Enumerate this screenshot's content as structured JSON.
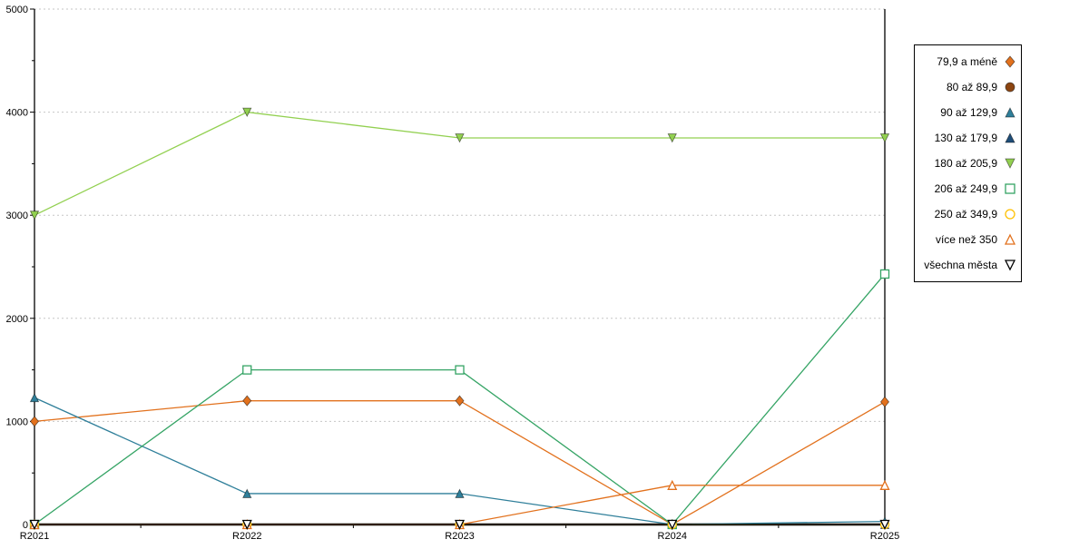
{
  "chart_data": {
    "type": "line",
    "title": "",
    "xlabel": "",
    "ylabel": "",
    "categories": [
      "R2021",
      "R2022",
      "R2023",
      "R2024",
      "R2025"
    ],
    "ylim": [
      0,
      5000
    ],
    "y_ticks": [
      0,
      1000,
      2000,
      3000,
      4000,
      5000
    ],
    "grid": "dotted-horizontal",
    "legend_position": "right",
    "axis_color": "#000000",
    "grid_color": "#c6c6c6",
    "series": [
      {
        "name": "79,9 a méně",
        "color": "#e2711d",
        "marker": "diamond",
        "fill": "filled",
        "values": [
          1000,
          1200,
          1200,
          0,
          1190
        ]
      },
      {
        "name": "80 až 89,9",
        "color": "#8c4511",
        "marker": "circle",
        "fill": "filled",
        "values": [
          0,
          0,
          0,
          0,
          0
        ]
      },
      {
        "name": "90 až 129,9",
        "color": "#2f7f9a",
        "marker": "triangle-up",
        "fill": "filled",
        "values": [
          1230,
          300,
          300,
          0,
          30
        ]
      },
      {
        "name": "130 až 179,9",
        "color": "#1f4e79",
        "marker": "triangle-up",
        "fill": "filled",
        "values": [
          0,
          0,
          0,
          0,
          0
        ]
      },
      {
        "name": "180 až 205,9",
        "color": "#92d050",
        "marker": "triangle-down",
        "fill": "filled",
        "values": [
          3000,
          4000,
          3750,
          3750,
          3750
        ]
      },
      {
        "name": "206 až 249,9",
        "color": "#35a465",
        "marker": "square",
        "fill": "hollow",
        "values": [
          0,
          1500,
          1500,
          0,
          2430
        ]
      },
      {
        "name": "250 až 349,9",
        "color": "#ffc000",
        "marker": "circle",
        "fill": "hollow",
        "values": [
          0,
          0,
          0,
          0,
          0
        ]
      },
      {
        "name": "více než 350",
        "color": "#e2711d",
        "marker": "triangle-up",
        "fill": "hollow",
        "values": [
          0,
          0,
          0,
          380,
          380
        ]
      },
      {
        "name": "všechna města",
        "color": "#000000",
        "marker": "triangle-down",
        "fill": "hollow",
        "values": [
          0,
          0,
          0,
          0,
          0
        ]
      }
    ]
  }
}
